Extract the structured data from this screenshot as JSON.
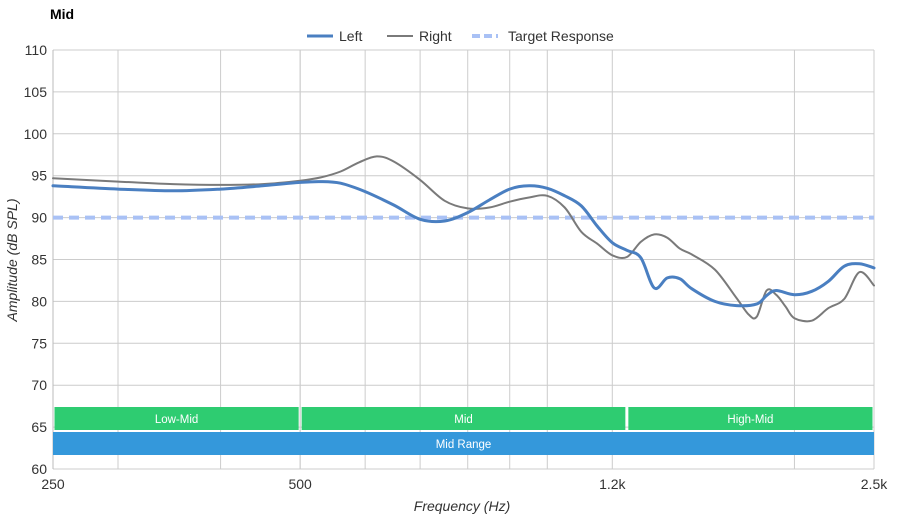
{
  "chart_data": {
    "type": "line",
    "title": "Mid",
    "xlabel": "Frequency (Hz)",
    "ylabel": "Amplitude (dB SPL)",
    "x_scale": "log",
    "xlim": [
      250,
      2500
    ],
    "ylim": [
      60,
      110
    ],
    "grid": true,
    "legend_position": "top-center",
    "x_ticks": [
      {
        "value": 250,
        "label": "250"
      },
      {
        "value": 500,
        "label": "500"
      },
      {
        "value": 1200,
        "label": "1.2k"
      },
      {
        "value": 2500,
        "label": "2.5k"
      }
    ],
    "y_ticks": [
      60,
      65,
      70,
      75,
      80,
      85,
      90,
      95,
      100,
      105,
      110
    ],
    "series": [
      {
        "name": "Left",
        "color": "#4a7fc1",
        "style": "solid",
        "x": [
          250,
          300,
          350,
          400,
          450,
          500,
          530,
          560,
          600,
          650,
          700,
          750,
          800,
          850,
          900,
          950,
          1000,
          1050,
          1100,
          1150,
          1200,
          1250,
          1300,
          1350,
          1400,
          1450,
          1500,
          1600,
          1700,
          1800,
          1850,
          1900,
          2000,
          2100,
          2200,
          2300,
          2400,
          2500
        ],
        "y": [
          93.8,
          93.4,
          93.2,
          93.4,
          93.8,
          94.2,
          94.3,
          94.1,
          93.1,
          91.5,
          89.8,
          89.6,
          90.6,
          92.1,
          93.4,
          93.8,
          93.5,
          92.6,
          91.4,
          89.0,
          87.0,
          86.1,
          85.2,
          81.6,
          82.8,
          82.7,
          81.5,
          80.0,
          79.5,
          79.7,
          80.7,
          81.3,
          80.8,
          81.2,
          82.4,
          84.2,
          84.5,
          84.0
        ]
      },
      {
        "name": "Right",
        "color": "#7a7a7a",
        "style": "solid",
        "x": [
          250,
          300,
          350,
          400,
          450,
          500,
          530,
          560,
          590,
          620,
          650,
          700,
          750,
          800,
          850,
          900,
          950,
          1000,
          1050,
          1100,
          1150,
          1200,
          1250,
          1300,
          1350,
          1400,
          1450,
          1500,
          1600,
          1700,
          1760,
          1800,
          1850,
          1900,
          1950,
          2000,
          2100,
          2200,
          2300,
          2400,
          2500
        ],
        "y": [
          94.7,
          94.3,
          94.0,
          93.9,
          94.0,
          94.4,
          94.8,
          95.5,
          96.6,
          97.3,
          96.7,
          94.5,
          92.0,
          91.1,
          91.2,
          91.9,
          92.4,
          92.6,
          91.2,
          88.3,
          86.9,
          85.5,
          85.3,
          87.1,
          88.0,
          87.6,
          86.3,
          85.6,
          83.8,
          80.4,
          78.4,
          78.2,
          81.3,
          80.8,
          79.4,
          78.0,
          77.7,
          79.2,
          80.3,
          83.5,
          81.9
        ]
      },
      {
        "name": "Target Response",
        "color": "#a9c1f5",
        "style": "dashed",
        "x": [
          250,
          2500
        ],
        "y": [
          90,
          90
        ]
      }
    ],
    "bands": [
      {
        "label": "Low-Mid",
        "x_start": 250,
        "x_end": 500,
        "row": 0,
        "color": "#2ecc71"
      },
      {
        "label": "Mid",
        "x_start": 500,
        "x_end": 1250,
        "row": 0,
        "color": "#2ecc71"
      },
      {
        "label": "High-Mid",
        "x_start": 1250,
        "x_end": 2500,
        "row": 0,
        "color": "#2ecc71"
      },
      {
        "label": "Mid Range",
        "x_start": 250,
        "x_end": 2500,
        "row": 1,
        "color": "#3498db"
      }
    ]
  }
}
